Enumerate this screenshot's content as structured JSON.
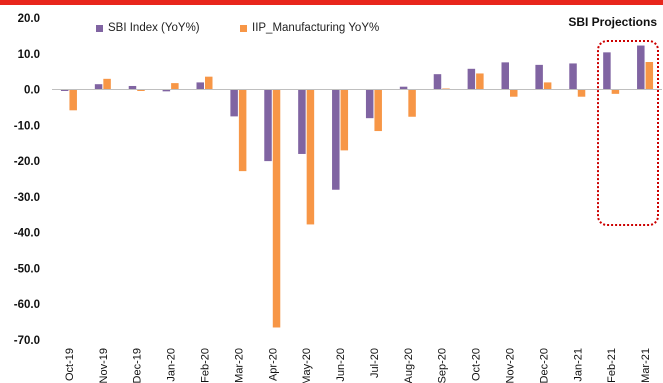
{
  "annotation": {
    "text": "SBI Projections"
  },
  "colors": {
    "sbi": "#8064A2",
    "iip": "#F79646",
    "accent": "#e8261c",
    "projection_box": "#cc0000"
  },
  "chart_data": {
    "type": "bar",
    "title": "",
    "xlabel": "",
    "ylabel": "",
    "ylim": [
      -70,
      20
    ],
    "yticks": [
      "20.0",
      "10.0",
      "0.0",
      "-10.0",
      "-20.0",
      "-30.0",
      "-40.0",
      "-50.0",
      "-60.0",
      "-70.0"
    ],
    "grid": false,
    "legend_position": "top-left",
    "categories": [
      "Oct-19",
      "Nov-19",
      "Dec-19",
      "Jan-20",
      "Feb-20",
      "Mar-20",
      "Apr-20",
      "May-20",
      "Jun-20",
      "Jul-20",
      "Aug-20",
      "Sep-20",
      "Oct-20",
      "Nov-20",
      "Dec-20",
      "Jan-21",
      "Feb-21",
      "Mar-21"
    ],
    "series": [
      {
        "name": "SBI Index (YoY%)",
        "values": [
          -0.4,
          1.5,
          1.0,
          -0.5,
          2.0,
          -7.5,
          -20.0,
          -18.0,
          -28.0,
          -8.0,
          0.8,
          4.3,
          5.8,
          7.6,
          6.9,
          7.3,
          10.4,
          12.3
        ]
      },
      {
        "name": "IIP_Manufacturing YoY%",
        "values": [
          -5.8,
          3.0,
          -0.4,
          1.8,
          3.6,
          -22.8,
          -66.5,
          -37.7,
          -17.0,
          -11.6,
          -7.6,
          0.3,
          4.5,
          -2.0,
          2.0,
          -2.0,
          -1.2,
          7.7
        ]
      }
    ]
  }
}
